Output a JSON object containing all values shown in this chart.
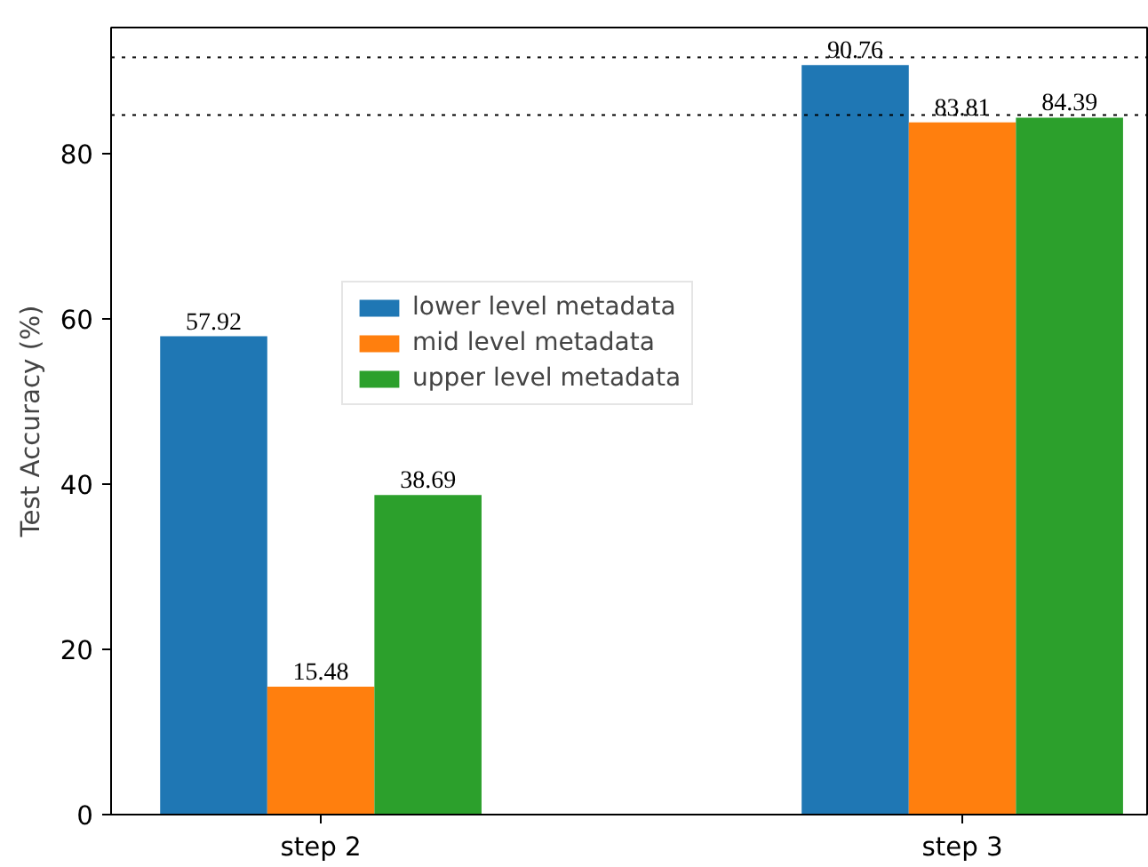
{
  "chart_data": {
    "type": "bar",
    "ylabel": "Test Accuracy (%)",
    "categories": [
      "step 2",
      "step 3"
    ],
    "series": [
      {
        "name": "lower level metadata",
        "color": "#1f77b4",
        "values": [
          57.92,
          90.76
        ]
      },
      {
        "name": "mid level metadata",
        "color": "#ff7f0e",
        "values": [
          15.48,
          83.81
        ]
      },
      {
        "name": "upper level metadata",
        "color": "#2ca02c",
        "values": [
          38.69,
          84.39
        ]
      }
    ],
    "ylim": [
      0,
      95.3
    ],
    "yticks": [
      0,
      20,
      40,
      60,
      80
    ],
    "ref_lines": [
      {
        "axis": "y",
        "value": 91.7,
        "line_style": "dotted"
      },
      {
        "axis": "y",
        "value": 84.7,
        "line_style": "dotted"
      }
    ],
    "data_labels": true,
    "legend": "center",
    "grid": false
  }
}
